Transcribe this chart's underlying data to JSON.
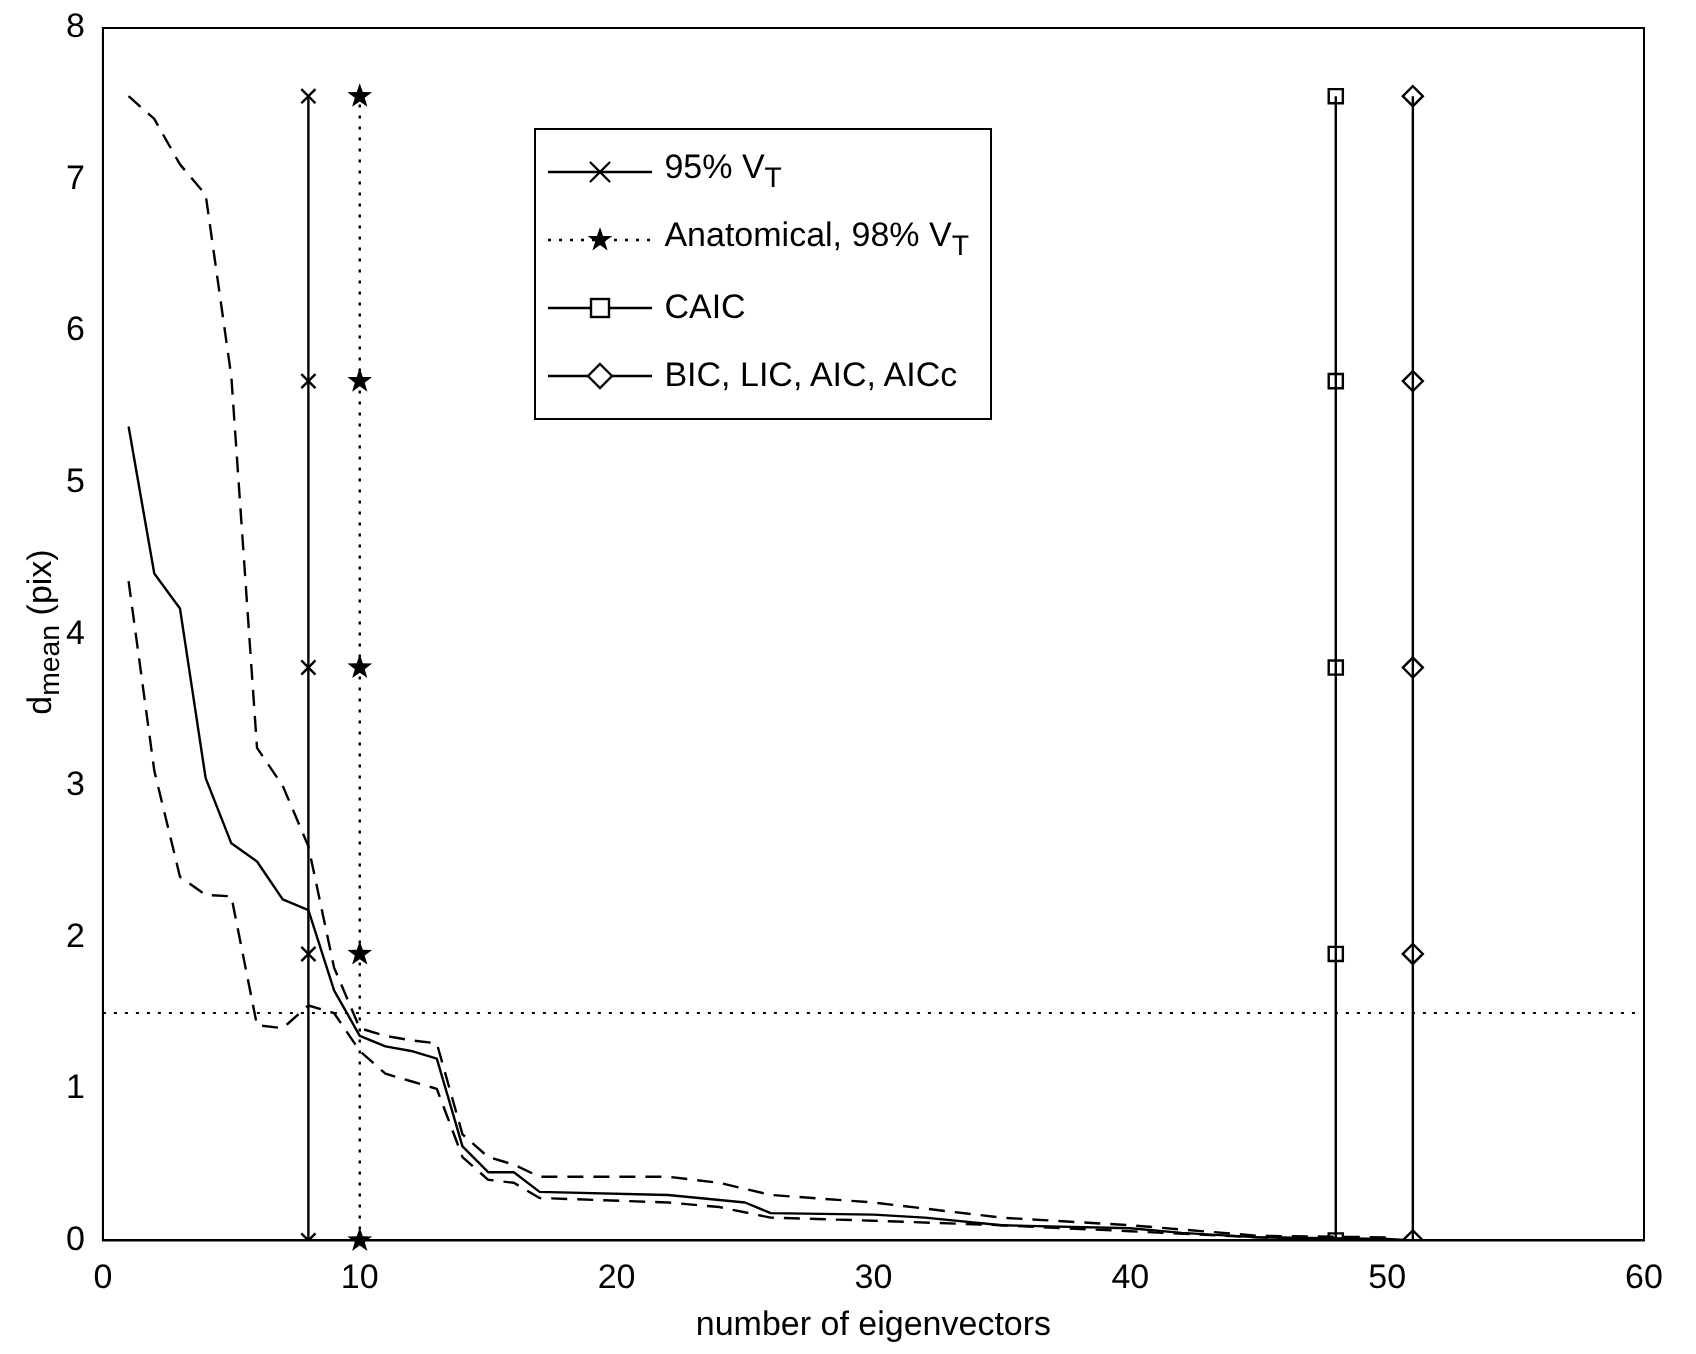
{
  "chart_data": {
    "type": "line",
    "xlabel": "number of eigenvectors",
    "ylabel": "d$_{mean}$ (pix)",
    "xlim": [
      0,
      60
    ],
    "xticks": [
      0,
      10,
      20,
      30,
      40,
      50,
      60
    ],
    "ylim": [
      0,
      8
    ],
    "yticks": [
      0,
      1,
      2,
      3,
      4,
      5,
      6,
      7,
      8
    ],
    "grid": false,
    "legend": "top",
    "series": [
      {
        "color": "#000000",
        "line_style": "solid",
        "marker": "none",
        "x": [
          1,
          2,
          3,
          4,
          5,
          6,
          7,
          8,
          9,
          10,
          11,
          12,
          13,
          14,
          15,
          16,
          17,
          22,
          25,
          26,
          30,
          32,
          35,
          40,
          42,
          45,
          50,
          51
        ],
        "values": [
          5.37,
          4.4,
          4.17,
          3.05,
          2.62,
          2.5,
          2.25,
          2.18,
          1.65,
          1.35,
          1.28,
          1.25,
          1.2,
          0.62,
          0.45,
          0.45,
          0.32,
          0.3,
          0.25,
          0.18,
          0.17,
          0.15,
          0.1,
          0.08,
          0.05,
          0.02,
          0.01,
          0
        ]
      },
      {
        "color": "#000000",
        "line_style": "dashed",
        "marker": "none",
        "x": [
          1,
          2,
          3,
          4,
          5,
          6,
          7,
          8,
          9,
          10,
          11,
          12,
          13,
          14,
          15,
          16,
          17,
          22,
          24,
          26,
          30,
          35,
          40,
          45,
          50
        ],
        "values": [
          7.55,
          7.4,
          7.1,
          6.9,
          5.7,
          3.25,
          3.0,
          2.6,
          1.8,
          1.4,
          1.35,
          1.32,
          1.3,
          0.7,
          0.55,
          0.5,
          0.42,
          0.42,
          0.38,
          0.3,
          0.25,
          0.15,
          0.1,
          0.03,
          0.02
        ]
      },
      {
        "color": "#000000",
        "line_style": "dashed",
        "marker": "none",
        "x": [
          1,
          2,
          3,
          4,
          5,
          6,
          7,
          8,
          9,
          10,
          11,
          12,
          13,
          14,
          15,
          16,
          17,
          22,
          24,
          26,
          30,
          35,
          40,
          45,
          50
        ],
        "values": [
          4.35,
          3.1,
          2.4,
          2.28,
          2.27,
          1.42,
          1.4,
          1.55,
          1.5,
          1.25,
          1.1,
          1.05,
          1.0,
          0.55,
          0.4,
          0.38,
          0.28,
          0.25,
          0.22,
          0.15,
          0.13,
          0.1,
          0.06,
          0.02,
          0
        ]
      },
      {
        "name": "95% V$_{T}$",
        "color": "#000000",
        "line_style": "solid",
        "marker": "cross",
        "x": [
          8,
          8,
          8,
          8,
          8
        ],
        "values": [
          0,
          1.89,
          3.78,
          5.67,
          7.55
        ]
      },
      {
        "name": "Anatomical, 98% V$_{T}$",
        "color": "#000000",
        "line_style": "dotted",
        "marker": "star",
        "x": [
          10,
          10,
          10,
          10,
          10
        ],
        "values": [
          0,
          1.89,
          3.78,
          5.67,
          7.55
        ]
      },
      {
        "name": "CAIC",
        "color": "#000000",
        "line_style": "solid",
        "marker": "square",
        "x": [
          48,
          48,
          48,
          48,
          48
        ],
        "values": [
          0,
          1.89,
          3.78,
          5.67,
          7.55
        ]
      },
      {
        "name": "BIC, LIC, AIC, AICc",
        "color": "#000000",
        "line_style": "solid",
        "marker": "diamond",
        "x": [
          51,
          51,
          51,
          51,
          51
        ],
        "values": [
          0,
          1.89,
          3.78,
          5.67,
          7.55
        ]
      }
    ],
    "ref_lines": [
      {
        "axis": "y",
        "value": 1.5,
        "color": "#000000",
        "line_style": "dotted"
      }
    ]
  }
}
